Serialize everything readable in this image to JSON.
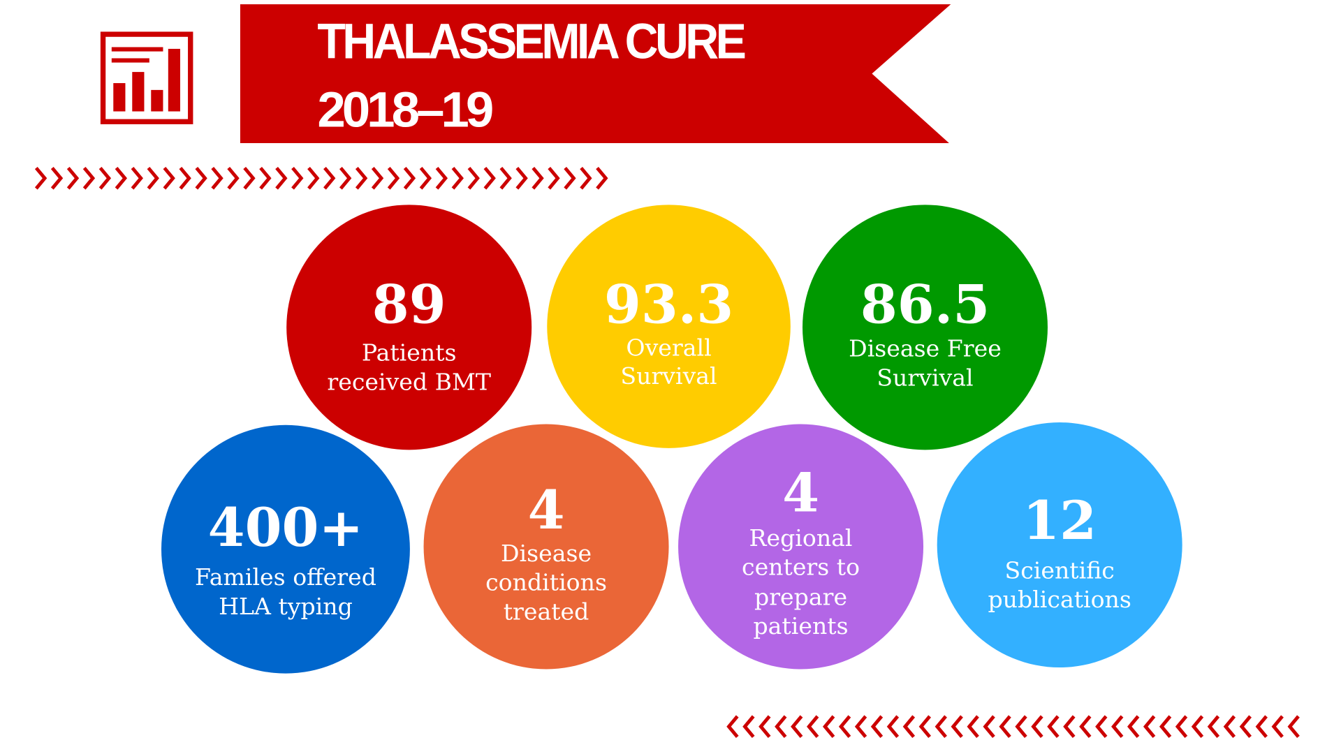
{
  "header": {
    "title": [
      "THALASSEMIA CURE",
      "2018–19"
    ]
  },
  "stats": [
    {
      "value": "89",
      "label": [
        "Patients",
        "received BMT"
      ]
    },
    {
      "value": "93.3",
      "label": [
        "Overall",
        "Survival"
      ]
    },
    {
      "value": "86.5",
      "label": [
        "Disease Free",
        "Survival"
      ]
    },
    {
      "value": "400+",
      "label": [
        "Familes offered",
        "HLA typing"
      ]
    },
    {
      "value": "4",
      "label": [
        "Disease",
        "conditions",
        "treated"
      ]
    },
    {
      "value": "4",
      "label": [
        "Regional",
        "centers to",
        "prepare",
        "patients"
      ]
    },
    {
      "value": "12",
      "label": [
        "Scientific",
        "publications"
      ]
    }
  ]
}
